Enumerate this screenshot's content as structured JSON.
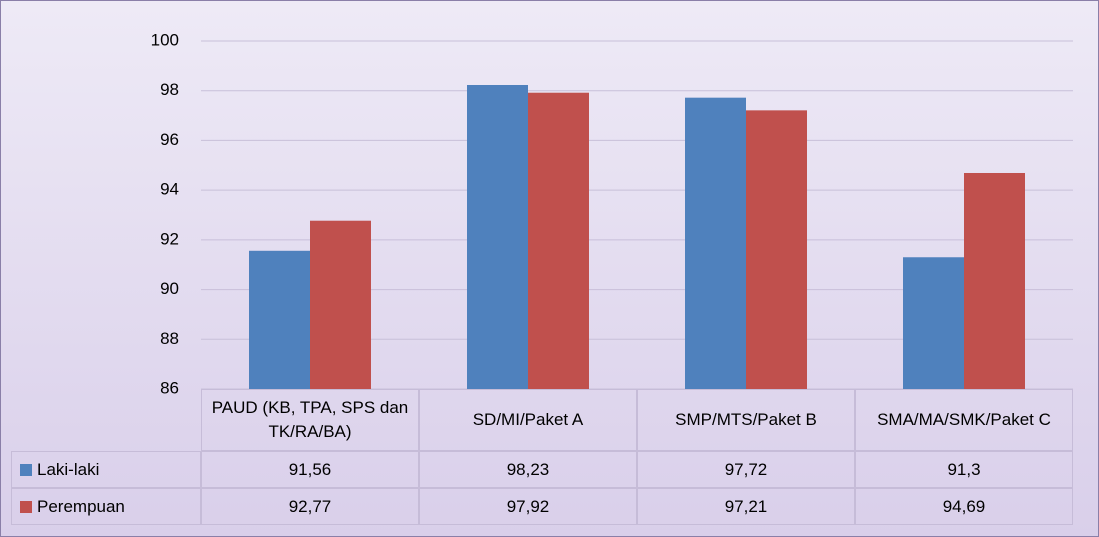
{
  "chart_data": {
    "type": "bar",
    "categories": [
      "PAUD (KB, TPA, SPS dan TK/RA/BA)",
      "SD/MI/Paket A",
      "SMP/MTS/Paket B",
      "SMA/MA/SMK/Paket C"
    ],
    "series": [
      {
        "name": "Laki-laki",
        "color": "#4f81bd",
        "values": [
          91.56,
          98.23,
          97.72,
          91.3
        ],
        "value_labels": [
          "91,56",
          "98,23",
          "97,72",
          "91,3"
        ]
      },
      {
        "name": "Perempuan",
        "color": "#c0504d",
        "values": [
          92.77,
          97.92,
          97.21,
          94.69
        ],
        "value_labels": [
          "92,77",
          "97,92",
          "97,21",
          "94,69"
        ]
      }
    ],
    "ylim": [
      86,
      100
    ],
    "yticks": [
      86,
      88,
      90,
      92,
      94,
      96,
      98,
      100
    ],
    "grid": true
  }
}
